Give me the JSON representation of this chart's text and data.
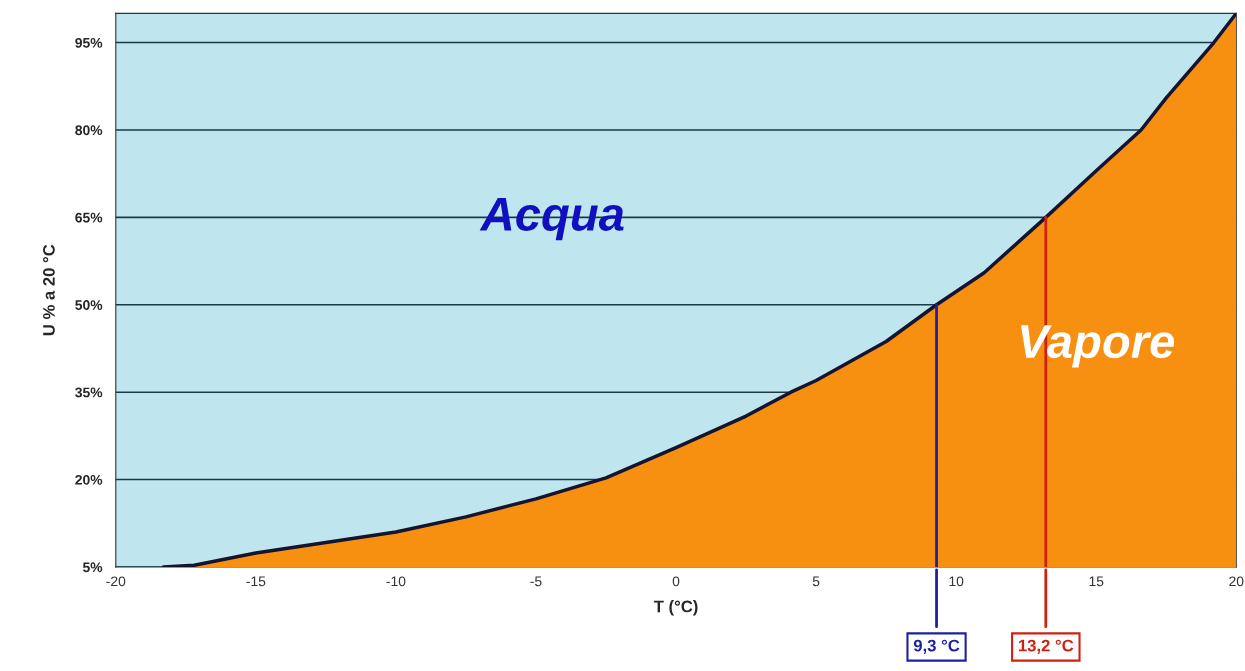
{
  "chart_data": {
    "type": "area",
    "xlabel": "T (°C)",
    "ylabel": "U % a 20 °C",
    "series": [
      {
        "color": "#f79010",
        "x": [
          -18.3,
          -17.2,
          -15,
          -12.5,
          -10,
          -7.5,
          -5,
          -2.5,
          0,
          2.5,
          4.1,
          5,
          7.5,
          9.3,
          11,
          13.2,
          15,
          16.6,
          17.5,
          19.2,
          20
        ],
        "values": [
          5,
          5.3,
          7.4,
          9.2,
          11,
          13.6,
          16.7,
          20.3,
          25.5,
          30.9,
          35,
          37,
          43.7,
          50,
          55.5,
          65,
          73,
          80,
          85.5,
          95,
          100
        ]
      }
    ],
    "xlim": [
      -20,
      20
    ],
    "ylim": [
      5,
      100
    ],
    "xticks": [
      -20,
      -15,
      -10,
      -5,
      0,
      5,
      10,
      15,
      20
    ],
    "yticks": [
      {
        "value": 5,
        "label": "5%"
      },
      {
        "value": 20,
        "label": "20%"
      },
      {
        "value": 35,
        "label": "35%"
      },
      {
        "value": 50,
        "label": "50%"
      },
      {
        "value": 65,
        "label": "65%"
      },
      {
        "value": 80,
        "label": "80%"
      },
      {
        "value": 95,
        "label": "95%"
      }
    ],
    "grid": "y",
    "ref_lines": [
      {
        "axis": "x",
        "value": 9.3,
        "label": "9,3 °C",
        "color": "#1f1fa0"
      },
      {
        "axis": "x",
        "value": 13.2,
        "label": "13,2 °C",
        "color": "#d02010"
      }
    ],
    "annotations": [
      "Acqua",
      "Vapore"
    ]
  }
}
